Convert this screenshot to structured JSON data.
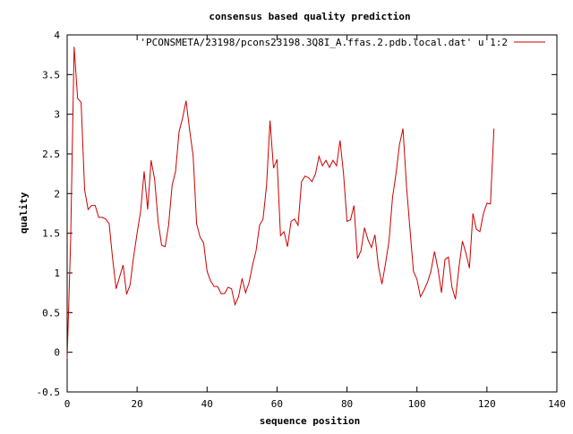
{
  "chart_data": {
    "type": "line",
    "title": "consensus based quality prediction",
    "xlabel": "sequence position",
    "ylabel": "quality",
    "xlim": [
      0,
      140
    ],
    "ylim": [
      -0.5,
      4
    ],
    "xticks": [
      0,
      20,
      40,
      60,
      80,
      100,
      120,
      140
    ],
    "yticks": [
      -0.5,
      0,
      0.5,
      1,
      1.5,
      2,
      2.5,
      3,
      3.5,
      4
    ],
    "legend_position": "top-right",
    "series": [
      {
        "name": "'PCONSMETA/23198/pcons23198.3Q8I_A.ffas.2.pdb.local.dat' u 1:2",
        "color": "#cc0000",
        "x": [
          0,
          1,
          2,
          3,
          4,
          5,
          6,
          7,
          8,
          9,
          10,
          11,
          12,
          13,
          14,
          15,
          16,
          17,
          18,
          19,
          20,
          21,
          22,
          23,
          24,
          25,
          26,
          27,
          28,
          29,
          30,
          31,
          32,
          33,
          34,
          35,
          36,
          37,
          38,
          39,
          40,
          41,
          42,
          43,
          44,
          45,
          46,
          47,
          48,
          49,
          50,
          51,
          52,
          53,
          54,
          55,
          56,
          57,
          58,
          59,
          60,
          61,
          62,
          63,
          64,
          65,
          66,
          67,
          68,
          69,
          70,
          71,
          72,
          73,
          74,
          75,
          76,
          77,
          78,
          79,
          80,
          81,
          82,
          83,
          84,
          85,
          86,
          87,
          88,
          89,
          90,
          91,
          92,
          93,
          94,
          95,
          96,
          97,
          98,
          99,
          100,
          101,
          102,
          103,
          104,
          105,
          106,
          107,
          108,
          109,
          110,
          111,
          112,
          113,
          114,
          115,
          116,
          117,
          118,
          119,
          120,
          121,
          122
        ],
        "y": [
          -0.08,
          1.41,
          3.85,
          3.2,
          3.15,
          2.05,
          1.8,
          1.85,
          1.85,
          1.7,
          1.7,
          1.68,
          1.62,
          1.18,
          0.8,
          0.95,
          1.1,
          0.73,
          0.85,
          1.2,
          1.5,
          1.78,
          2.28,
          1.8,
          2.42,
          2.18,
          1.65,
          1.35,
          1.33,
          1.6,
          2.1,
          2.28,
          2.78,
          2.95,
          3.17,
          2.8,
          2.48,
          1.62,
          1.45,
          1.38,
          1.02,
          0.9,
          0.83,
          0.83,
          0.74,
          0.74,
          0.82,
          0.8,
          0.6,
          0.7,
          0.93,
          0.75,
          0.88,
          1.1,
          1.28,
          1.6,
          1.68,
          2.1,
          2.92,
          2.32,
          2.43,
          1.47,
          1.52,
          1.33,
          1.65,
          1.68,
          1.6,
          2.15,
          2.22,
          2.2,
          2.15,
          2.25,
          2.47,
          2.35,
          2.42,
          2.33,
          2.42,
          2.35,
          2.67,
          2.25,
          1.65,
          1.67,
          1.85,
          1.18,
          1.28,
          1.57,
          1.42,
          1.32,
          1.48,
          1.08,
          0.86,
          1.12,
          1.4,
          1.95,
          2.25,
          2.62,
          2.82,
          2.1,
          1.55,
          1.02,
          0.92,
          0.7,
          0.78,
          0.88,
          1.02,
          1.27,
          1.05,
          0.75,
          1.17,
          1.2,
          0.82,
          0.67,
          1.07,
          1.4,
          1.25,
          1.06,
          1.75,
          1.55,
          1.52,
          1.75,
          1.88,
          1.87,
          2.82
        ]
      }
    ]
  }
}
